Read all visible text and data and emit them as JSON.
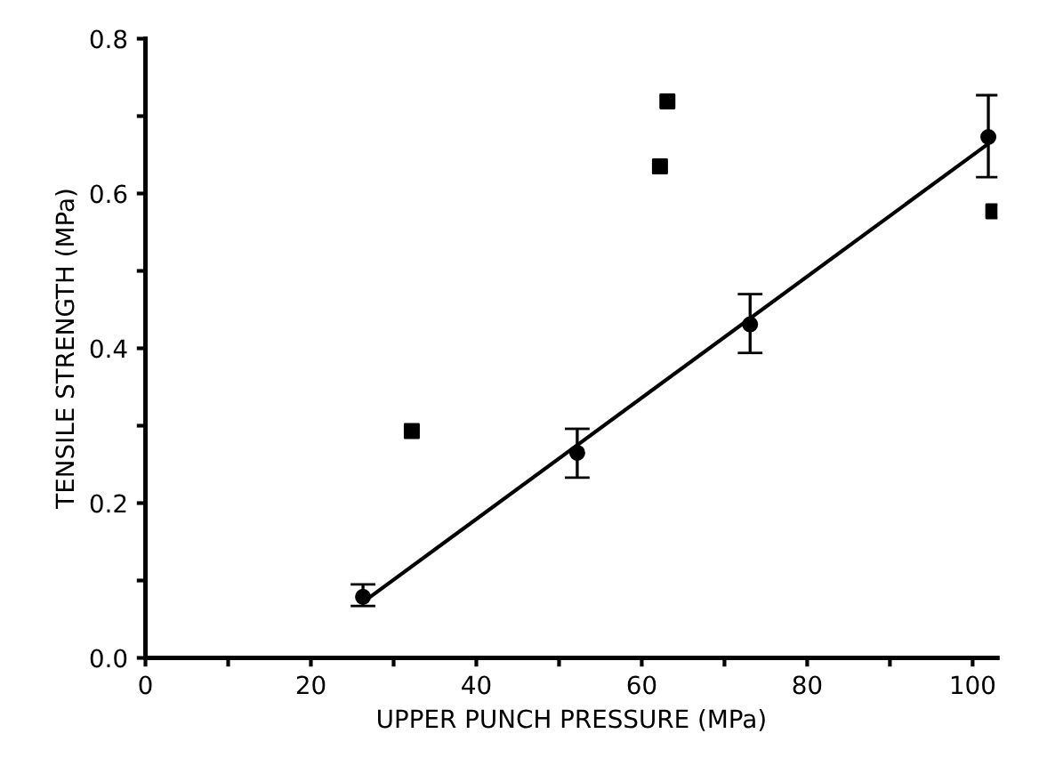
{
  "chart_data": {
    "type": "scatter",
    "xlabel": "UPPER PUNCH PRESSURE (MPa)",
    "ylabel": "TENSILE STRENGTH (MPa)",
    "xlim": [
      0,
      103
    ],
    "ylim": [
      0,
      0.8
    ],
    "xticks": [
      0,
      {
        "value": 10,
        "label": null
      },
      20,
      {
        "value": 30,
        "label": null
      },
      40,
      {
        "value": 50,
        "label": null
      },
      60,
      {
        "value": 70,
        "label": null
      },
      80,
      {
        "value": 90,
        "label": null
      },
      100
    ],
    "yticks": [
      {
        "value": 0,
        "label": "0.0"
      },
      {
        "value": 0.1,
        "label": null
      },
      {
        "value": 0.2,
        "label": "0.2"
      },
      {
        "value": 0.3,
        "label": null
      },
      {
        "value": 0.4,
        "label": "0.4"
      },
      {
        "value": 0.5,
        "label": null
      },
      {
        "value": 0.6,
        "label": "0.6"
      },
      {
        "value": 0.7,
        "label": null
      },
      {
        "value": 0.8,
        "label": "0.8"
      }
    ],
    "grid": false,
    "legend": false,
    "series": [
      {
        "marker": "circle",
        "color": "#000000",
        "x": [
          26.3,
          52.2,
          73.1,
          101.9
        ],
        "values": [
          0.079,
          0.265,
          0.431,
          0.673
        ],
        "errors": [
          [
            0.067,
            0.095
          ],
          [
            0.233,
            0.296
          ],
          [
            0.394,
            0.47
          ],
          [
            0.621,
            0.727
          ]
        ]
      },
      {
        "marker": "square",
        "color": "#000000",
        "x": [
          32.2,
          62.2,
          63.1,
          102.5
        ],
        "values": [
          0.293,
          0.635,
          0.719,
          0.577
        ]
      },
      {
        "type": "line",
        "marker": "none",
        "line_style": "solid",
        "color": "#000000",
        "x": [
          26.3,
          101.6
        ],
        "values": [
          0.072,
          0.662
        ]
      }
    ]
  }
}
